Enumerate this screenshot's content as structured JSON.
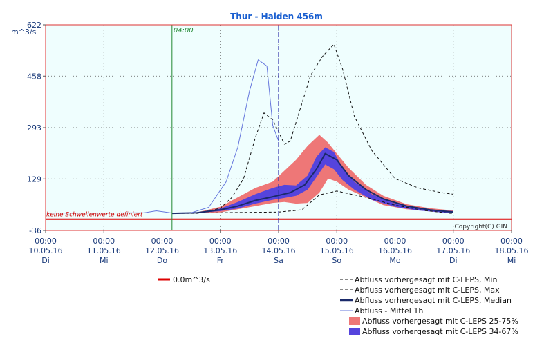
{
  "chart_data": {
    "type": "line",
    "title": "Thur - Halden 456m",
    "unit": "m^3/s",
    "ylim": [
      -36,
      622
    ],
    "yticks": [
      "622",
      "458",
      "293",
      "129",
      "-36"
    ],
    "ytick_values": [
      622,
      458,
      293,
      129,
      -36
    ],
    "xlim": [
      0,
      8
    ],
    "x_ticks": [
      {
        "x": 0,
        "time": "00:00",
        "date": "10.05.16",
        "day": "Di"
      },
      {
        "x": 1,
        "time": "00:00",
        "date": "11.05.16",
        "day": "Mi"
      },
      {
        "x": 2,
        "time": "00:00",
        "date": "12.05.16",
        "day": "Do"
      },
      {
        "x": 3,
        "time": "00:00",
        "date": "13.05.16",
        "day": "Fr"
      },
      {
        "x": 4,
        "time": "00:00",
        "date": "14.05.16",
        "day": "Sa"
      },
      {
        "x": 5,
        "time": "00:00",
        "date": "15.05.16",
        "day": "So"
      },
      {
        "x": 6,
        "time": "00:00",
        "date": "16.05.16",
        "day": "Mo"
      },
      {
        "x": 7,
        "time": "00:00",
        "date": "17.05.16",
        "day": "Di"
      },
      {
        "x": 8,
        "time": "00:00",
        "date": "18.05.16",
        "day": "Mi"
      }
    ],
    "forecast_start": {
      "x": 2.17,
      "label": "04:00",
      "color": "#228833"
    },
    "now_marker": {
      "x": 4.0,
      "color": "#3333aa"
    },
    "threshold": {
      "value": 0,
      "color": "#dd0000",
      "label": "0.0m^3/s"
    },
    "threshold_note": "keine Schwellenwerte definiert",
    "copyright": "Copyright(C) GIN",
    "grid": true,
    "series": [
      {
        "name": "Abfluss vorhergesagt mit C-LEPS, Min",
        "style": "dashed",
        "color": "#111111",
        "x": [
          2.17,
          3.0,
          3.5,
          4.0,
          4.4,
          4.7,
          5.0,
          5.5,
          6.0,
          6.5,
          7.0
        ],
        "y": [
          19,
          21,
          22,
          23,
          30,
          78,
          90,
          70,
          45,
          28,
          18
        ]
      },
      {
        "name": "Abfluss vorhergesagt mit C-LEPS, Max",
        "style": "dashed",
        "color": "#111111",
        "x": [
          2.17,
          2.6,
          3.0,
          3.2,
          3.4,
          3.6,
          3.75,
          3.9,
          4.0,
          4.1,
          4.2,
          4.35,
          4.55,
          4.75,
          4.95,
          5.1,
          5.3,
          5.6,
          6.0,
          6.4,
          6.8,
          7.0
        ],
        "y": [
          19,
          19,
          35,
          70,
          130,
          260,
          340,
          318,
          280,
          240,
          250,
          340,
          460,
          520,
          560,
          480,
          330,
          220,
          130,
          100,
          85,
          80
        ]
      },
      {
        "name": "Abfluss vorhergesagt mit C-LEPS, Median",
        "style": "solid",
        "color": "#1a2a6a",
        "width": 2,
        "x": [
          2.17,
          2.6,
          3.0,
          3.3,
          3.6,
          3.9,
          4.2,
          4.45,
          4.65,
          4.8,
          5.0,
          5.2,
          5.5,
          5.8,
          6.2,
          6.6,
          7.0
        ],
        "y": [
          19,
          21,
          30,
          42,
          60,
          72,
          85,
          110,
          160,
          210,
          190,
          140,
          95,
          65,
          42,
          30,
          23
        ]
      },
      {
        "name": "Abfluss - Mittel 1h",
        "style": "solid",
        "color": "#6677dd",
        "width": 1,
        "x": [
          0.0,
          1.0,
          1.7,
          1.9,
          2.17,
          2.5,
          2.8,
          3.1,
          3.3,
          3.5,
          3.65,
          3.8,
          3.9,
          4.0
        ],
        "y": [
          20,
          20,
          21,
          27,
          20,
          21,
          38,
          120,
          230,
          410,
          510,
          490,
          300,
          250
        ]
      }
    ],
    "bands": [
      {
        "name": "Abfluss vorhergesagt mit C-LEPS 25-75%",
        "color": "#ee7777",
        "x": [
          2.17,
          2.6,
          3.0,
          3.3,
          3.6,
          3.9,
          4.1,
          4.3,
          4.5,
          4.7,
          4.85,
          5.0,
          5.2,
          5.5,
          5.8,
          6.2,
          6.6,
          7.0
        ],
        "upper": [
          20,
          22,
          40,
          70,
          100,
          120,
          155,
          190,
          235,
          270,
          245,
          210,
          165,
          110,
          75,
          48,
          35,
          28
        ],
        "lower": [
          19,
          20,
          22,
          32,
          42,
          52,
          55,
          50,
          52,
          85,
          130,
          120,
          95,
          70,
          45,
          32,
          25,
          20
        ]
      },
      {
        "name": "Abfluss vorhergesagt mit C-LEPS 34-67%",
        "color": "#5544dd",
        "x": [
          2.17,
          2.6,
          3.0,
          3.3,
          3.6,
          3.9,
          4.1,
          4.3,
          4.5,
          4.65,
          4.8,
          4.95,
          5.1,
          5.3,
          5.6,
          6.0,
          6.4,
          6.8,
          7.0
        ],
        "upper": [
          20,
          21,
          34,
          55,
          80,
          100,
          110,
          108,
          140,
          200,
          230,
          215,
          165,
          120,
          80,
          50,
          35,
          28,
          26
        ],
        "lower": [
          19,
          20,
          26,
          34,
          50,
          62,
          68,
          75,
          95,
          135,
          175,
          160,
          125,
          95,
          62,
          40,
          28,
          22,
          20
        ]
      }
    ],
    "legend": [
      {
        "label": "0.0m^3/s",
        "kind": "line",
        "color": "#dd0000",
        "text_color": "#111111"
      },
      {
        "label": "Abfluss vorhergesagt mit C-LEPS, Min",
        "kind": "dashed",
        "color": "#111111",
        "text_color": "#111111"
      },
      {
        "label": "Abfluss vorhergesagt mit C-LEPS, Max",
        "kind": "dashed",
        "color": "#111111",
        "text_color": "#111111"
      },
      {
        "label": "Abfluss vorhergesagt mit C-LEPS, Median",
        "kind": "thick",
        "color": "#1a2a6a",
        "text_color": "#111111"
      },
      {
        "label": "Abfluss - Mittel 1h",
        "kind": "line",
        "color": "#6677dd",
        "text_color": "#6677dd"
      },
      {
        "label": "Abfluss vorhergesagt mit C-LEPS 25-75%",
        "kind": "box",
        "color": "#ee7777",
        "text_color": "#ee6666"
      },
      {
        "label": "Abfluss vorhergesagt mit C-LEPS 34-67%",
        "kind": "box",
        "color": "#5544dd",
        "text_color": "#5544dd"
      }
    ]
  }
}
